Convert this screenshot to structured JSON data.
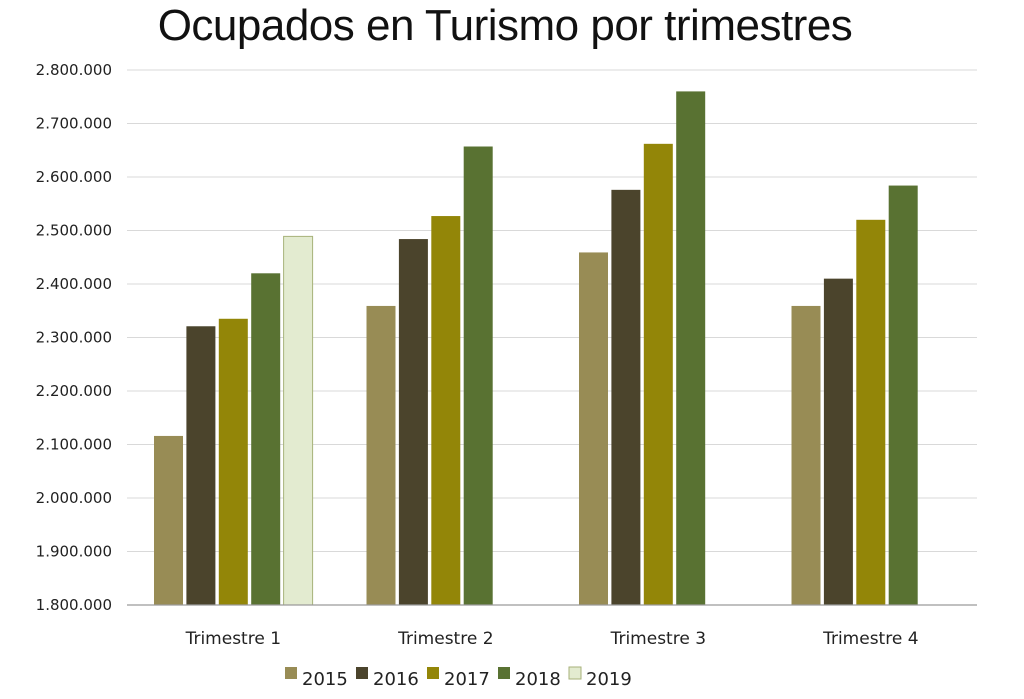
{
  "chart_data": {
    "type": "bar",
    "title": "Ocupados en Turismo por trimestres",
    "categories": [
      "Trimestre 1",
      "Trimestre 2",
      "Trimestre 3",
      "Trimestre 4"
    ],
    "series": [
      {
        "name": "2015",
        "color": "#988c55",
        "values": [
          2116000,
          2359000,
          2459000,
          2359000
        ]
      },
      {
        "name": "2016",
        "color": "#4b442c",
        "values": [
          2321000,
          2484000,
          2576000,
          2410000
        ]
      },
      {
        "name": "2017",
        "color": "#938608",
        "values": [
          2335000,
          2527000,
          2662000,
          2520000
        ]
      },
      {
        "name": "2018",
        "color": "#597232",
        "values": [
          2420000,
          2657000,
          2760000,
          2584000
        ]
      },
      {
        "name": "2019",
        "color": "#e3ebd0",
        "values": [
          2489000,
          null,
          null,
          null
        ]
      }
    ],
    "ylim": [
      1800000,
      2800000
    ],
    "yticks": [
      "1.800.000",
      "1.900.000",
      "2.000.000",
      "2.100.000",
      "2.200.000",
      "2.300.000",
      "2.400.000",
      "2.500.000",
      "2.600.000",
      "2.700.000",
      "2.800.000"
    ],
    "ytick_step": 100000,
    "grid": true,
    "legend_position": "bottom"
  }
}
